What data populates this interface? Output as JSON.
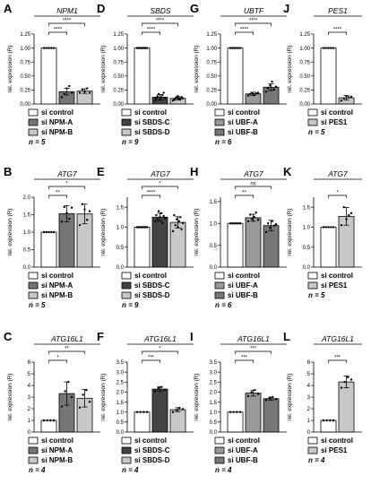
{
  "chart_data": [
    {
      "letter": "A",
      "title": "NPM1",
      "type": "bar",
      "ylabel": "rel. expression (R)",
      "ylim": [
        0,
        1.25
      ],
      "ticks": [
        0,
        0.25,
        0.5,
        0.75,
        1.0,
        1.25
      ],
      "tick_labels": [
        "0.00",
        "0.25",
        "0.50",
        "0.75",
        "1.00",
        "1.25"
      ],
      "categories": [
        "si control",
        "si NPM-A",
        "si NPM-B"
      ],
      "values": [
        1.0,
        0.22,
        0.23
      ],
      "errors": [
        0,
        0.06,
        0.04
      ],
      "points": [
        [
          1,
          1,
          1,
          1,
          1
        ],
        [
          0.12,
          0.18,
          0.28,
          0.32,
          0.2
        ],
        [
          0.2,
          0.26,
          0.22,
          0.28,
          0.2
        ]
      ],
      "fills": [
        "#ffffff",
        "#777777",
        "#c8c8c8"
      ],
      "n": "n = 5",
      "sig": [
        {
          "from": 0,
          "to": 1,
          "label": "****",
          "level": 0
        },
        {
          "from": 0,
          "to": 2,
          "label": "****",
          "level": 1
        }
      ]
    },
    {
      "letter": "D",
      "title": "SBDS",
      "type": "bar",
      "ylabel": "rel. expression (R)",
      "ylim": [
        0,
        1.25
      ],
      "ticks": [
        0,
        0.25,
        0.5,
        0.75,
        1.0,
        1.25
      ],
      "tick_labels": [
        "0.00",
        "0.25",
        "0.50",
        "0.75",
        "1.00",
        "1.25"
      ],
      "categories": [
        "si control",
        "si SBDS-C",
        "si SBDS-D"
      ],
      "values": [
        1.0,
        0.12,
        0.1
      ],
      "errors": [
        0,
        0.05,
        0.03
      ],
      "points": [
        [
          1,
          1,
          1,
          1,
          1,
          1,
          1,
          1,
          1
        ],
        [
          0.06,
          0.1,
          0.14,
          0.18,
          0.08,
          0.12,
          0.16,
          0.2,
          0.1
        ],
        [
          0.06,
          0.08,
          0.1,
          0.12,
          0.14,
          0.1,
          0.08,
          0.12,
          0.1
        ]
      ],
      "fills": [
        "#ffffff",
        "#444444",
        "#c8c8c8"
      ],
      "n": "n = 9",
      "sig": [
        {
          "from": 0,
          "to": 1,
          "label": "****",
          "level": 0
        },
        {
          "from": 0,
          "to": 2,
          "label": "****",
          "level": 1
        }
      ]
    },
    {
      "letter": "G",
      "title": "UBTF",
      "type": "bar",
      "ylabel": "rel. expression (R)",
      "ylim": [
        0,
        1.25
      ],
      "ticks": [
        0,
        0.25,
        0.5,
        0.75,
        1.0,
        1.25
      ],
      "tick_labels": [
        "0.00",
        "0.25",
        "0.50",
        "0.75",
        "1.00",
        "1.25"
      ],
      "categories": [
        "si control",
        "si UBF-A",
        "si UBF-B"
      ],
      "values": [
        1.0,
        0.18,
        0.3
      ],
      "errors": [
        0,
        0.03,
        0.06
      ],
      "points": [
        [
          1,
          1,
          1,
          1,
          1,
          1
        ],
        [
          0.15,
          0.18,
          0.2,
          0.16,
          0.19,
          0.2
        ],
        [
          0.22,
          0.28,
          0.33,
          0.4,
          0.26,
          0.31
        ]
      ],
      "fills": [
        "#ffffff",
        "#999999",
        "#777777"
      ],
      "n": "n = 6",
      "sig": [
        {
          "from": 0,
          "to": 1,
          "label": "****",
          "level": 0
        },
        {
          "from": 0,
          "to": 2,
          "label": "****",
          "level": 1
        }
      ]
    },
    {
      "letter": "J",
      "title": "PES1",
      "type": "bar",
      "ylabel": "rel. expression (R)",
      "ylim": [
        0,
        1.25
      ],
      "ticks": [
        0,
        0.25,
        0.5,
        0.75,
        1.0,
        1.25
      ],
      "tick_labels": [
        "0.00",
        "0.25",
        "0.50",
        "0.75",
        "1.00",
        "1.25"
      ],
      "categories": [
        "si control",
        "si PES1"
      ],
      "values": [
        1.0,
        0.11
      ],
      "errors": [
        0,
        0.04
      ],
      "points": [
        [
          1,
          1,
          1,
          1,
          1
        ],
        [
          0.06,
          0.1,
          0.14,
          0.12,
          0.13
        ]
      ],
      "fills": [
        "#ffffff",
        "#c8c8c8"
      ],
      "n": "n = 5",
      "sig": [
        {
          "from": 0,
          "to": 1,
          "label": "****",
          "level": 0
        }
      ]
    },
    {
      "letter": "B",
      "title": "ATG7",
      "type": "bar",
      "ylabel": "rel. expression (R)",
      "ylim": [
        0,
        2.0
      ],
      "ticks": [
        0,
        0.5,
        1.0,
        1.5,
        2.0
      ],
      "tick_labels": [
        "0.0",
        "0.5",
        "1.0",
        "1.5",
        "2.0"
      ],
      "categories": [
        "si control",
        "si NPM-A",
        "si NPM-B"
      ],
      "values": [
        1.0,
        1.53,
        1.52
      ],
      "errors": [
        0,
        0.23,
        0.28
      ],
      "points": [
        [
          1,
          1,
          1,
          1,
          1
        ],
        [
          1.3,
          1.72,
          1.55,
          1.38,
          1.7
        ],
        [
          1.2,
          1.8,
          1.65,
          1.35,
          1.6
        ]
      ],
      "fills": [
        "#ffffff",
        "#777777",
        "#c8c8c8"
      ],
      "n": "n = 5",
      "sig": [
        {
          "from": 0,
          "to": 1,
          "label": "**",
          "level": 0
        },
        {
          "from": 0,
          "to": 2,
          "label": "*",
          "level": 1
        }
      ]
    },
    {
      "letter": "E",
      "title": "ATG7",
      "type": "bar",
      "ylabel": "rel. expression (R)",
      "ylim": [
        0,
        1.75
      ],
      "ticks": [
        0,
        0.5,
        1.0,
        1.5
      ],
      "tick_labels": [
        "0.0",
        "0.5",
        "1.0",
        "1.5"
      ],
      "categories": [
        "si control",
        "si SBDS-C",
        "si SBDS-D"
      ],
      "values": [
        1.0,
        1.25,
        1.12
      ],
      "errors": [
        0,
        0.1,
        0.14
      ],
      "points": [
        [
          1,
          1,
          1,
          1,
          1,
          1,
          1,
          1,
          1
        ],
        [
          1.15,
          1.3,
          1.2,
          1.4,
          1.25,
          1.35,
          1.1,
          1.28,
          1.22
        ],
        [
          0.9,
          1.3,
          1.05,
          1.2,
          1.0,
          1.15,
          1.25,
          0.95,
          1.1
        ]
      ],
      "fills": [
        "#ffffff",
        "#444444",
        "#c8c8c8"
      ],
      "n": "n = 9",
      "sig": [
        {
          "from": 0,
          "to": 1,
          "label": "****",
          "level": 0
        },
        {
          "from": 0,
          "to": 2,
          "label": "*",
          "level": 1
        }
      ]
    },
    {
      "letter": "H",
      "title": "ATG7",
      "type": "bar",
      "ylabel": "rel. expression (R)",
      "ylim": [
        0,
        1.6
      ],
      "ticks": [
        0,
        0.5,
        1.0,
        1.5
      ],
      "tick_labels": [
        "0.0",
        "0.5",
        "1.0",
        "1.5"
      ],
      "categories": [
        "si control",
        "si UBF-A",
        "si UBF-B"
      ],
      "values": [
        1.0,
        1.13,
        0.95
      ],
      "errors": [
        0,
        0.08,
        0.12
      ],
      "points": [
        [
          1,
          1,
          1,
          1,
          1,
          1
        ],
        [
          1.05,
          1.2,
          1.1,
          1.15,
          1.25,
          1.08
        ],
        [
          0.8,
          1.0,
          0.9,
          1.05,
          0.95,
          0.98
        ]
      ],
      "fills": [
        "#ffffff",
        "#999999",
        "#777777"
      ],
      "n": "n = 6",
      "sig": [
        {
          "from": 0,
          "to": 1,
          "label": "**",
          "level": 0
        },
        {
          "from": 0,
          "to": 2,
          "label": "ns",
          "level": 1
        }
      ]
    },
    {
      "letter": "K",
      "title": "ATG7",
      "type": "bar",
      "ylabel": "rel. expression (R)",
      "ylim": [
        0,
        1.75
      ],
      "ticks": [
        0,
        0.5,
        1.0,
        1.5
      ],
      "tick_labels": [
        "0.0",
        "0.5",
        "1.0",
        "1.5"
      ],
      "categories": [
        "si control",
        "si PES1"
      ],
      "values": [
        1.0,
        1.27
      ],
      "errors": [
        0,
        0.22
      ],
      "points": [
        [
          1,
          1,
          1,
          1,
          1
        ],
        [
          1.05,
          1.5,
          1.2,
          1.3,
          1.35
        ]
      ],
      "fills": [
        "#ffffff",
        "#c8c8c8"
      ],
      "n": "n = 5",
      "sig": [
        {
          "from": 0,
          "to": 1,
          "label": "*",
          "level": 0
        }
      ]
    },
    {
      "letter": "C",
      "title": "ATG16L1",
      "type": "bar",
      "ylabel": "rel. expression (R)",
      "ylim": [
        0,
        6
      ],
      "ticks": [
        0,
        1,
        2,
        3,
        4,
        5,
        6
      ],
      "tick_labels": [
        "0",
        "1",
        "2",
        "3",
        "4",
        "5",
        "6"
      ],
      "categories": [
        "si control",
        "si NPM-A",
        "si NPM-B"
      ],
      "values": [
        1.0,
        3.3,
        2.9
      ],
      "errors": [
        0,
        1.0,
        0.75
      ],
      "points": [
        [
          1,
          1,
          1,
          1
        ],
        [
          2.2,
          3.5,
          4.3,
          3.0
        ],
        [
          2.1,
          3.2,
          3.6,
          2.6
        ]
      ],
      "fills": [
        "#ffffff",
        "#777777",
        "#c8c8c8"
      ],
      "n": "n = 4",
      "sig": [
        {
          "from": 0,
          "to": 1,
          "label": "*",
          "level": 0
        },
        {
          "from": 0,
          "to": 2,
          "label": "**",
          "level": 1
        }
      ]
    },
    {
      "letter": "F",
      "title": "ATG16L1",
      "type": "bar",
      "ylabel": "rel. expression (R)",
      "ylim": [
        0,
        3.5
      ],
      "ticks": [
        0,
        0.5,
        1.0,
        1.5,
        2.0,
        2.5,
        3.0,
        3.5
      ],
      "tick_labels": [
        "0.0",
        "0.5",
        "1.0",
        "1.5",
        "2.0",
        "2.5",
        "3.0",
        "3.5"
      ],
      "categories": [
        "si control",
        "si SBDS-C",
        "si SBDS-D"
      ],
      "values": [
        1.0,
        2.15,
        1.12
      ],
      "errors": [
        0,
        0.12,
        0.1
      ],
      "points": [
        [
          1,
          1,
          1,
          1
        ],
        [
          2.05,
          2.2,
          2.25,
          2.1
        ],
        [
          1.0,
          1.1,
          1.2,
          1.15
        ]
      ],
      "fills": [
        "#ffffff",
        "#444444",
        "#c8c8c8"
      ],
      "n": "n = 4",
      "sig": [
        {
          "from": 0,
          "to": 1,
          "label": "***",
          "level": 0
        },
        {
          "from": 0,
          "to": 2,
          "label": "*",
          "level": 1
        }
      ]
    },
    {
      "letter": "I",
      "title": "ATG16L1",
      "type": "bar",
      "ylabel": "rel. expression (R)",
      "ylim": [
        0,
        3.5
      ],
      "ticks": [
        0,
        0.5,
        1.0,
        1.5,
        2.0,
        2.5,
        3.0,
        3.5
      ],
      "tick_labels": [
        "0.0",
        "0.5",
        "1.0",
        "1.5",
        "2.0",
        "2.5",
        "3.0",
        "3.5"
      ],
      "categories": [
        "si control",
        "si UBF-A",
        "si UBF-B"
      ],
      "values": [
        1.0,
        1.95,
        1.67
      ],
      "errors": [
        0,
        0.15,
        0.08
      ],
      "points": [
        [
          1,
          1,
          1,
          1
        ],
        [
          1.8,
          2.0,
          2.1,
          1.9
        ],
        [
          1.6,
          1.7,
          1.75,
          1.65
        ]
      ],
      "fills": [
        "#ffffff",
        "#999999",
        "#777777"
      ],
      "n": "n = 4",
      "sig": [
        {
          "from": 0,
          "to": 1,
          "label": "***",
          "level": 0
        },
        {
          "from": 0,
          "to": 2,
          "label": "***",
          "level": 1
        }
      ]
    },
    {
      "letter": "L",
      "title": "ATG16L1",
      "type": "bar",
      "ylabel": "rel. expression (R)",
      "ylim": [
        0,
        6
      ],
      "ticks": [
        0,
        1,
        2,
        3,
        4,
        5,
        6
      ],
      "tick_labels": [
        "0",
        "1",
        "2",
        "3",
        "4",
        "5",
        "6"
      ],
      "categories": [
        "si control",
        "si PES1"
      ],
      "values": [
        1.0,
        4.3
      ],
      "errors": [
        0,
        0.5
      ],
      "points": [
        [
          1,
          1,
          1,
          1
        ],
        [
          3.8,
          4.3,
          4.7,
          4.5
        ]
      ],
      "fills": [
        "#ffffff",
        "#c8c8c8"
      ],
      "n": "n = 4",
      "sig": [
        {
          "from": 0,
          "to": 1,
          "label": "***",
          "level": 0
        }
      ]
    }
  ]
}
